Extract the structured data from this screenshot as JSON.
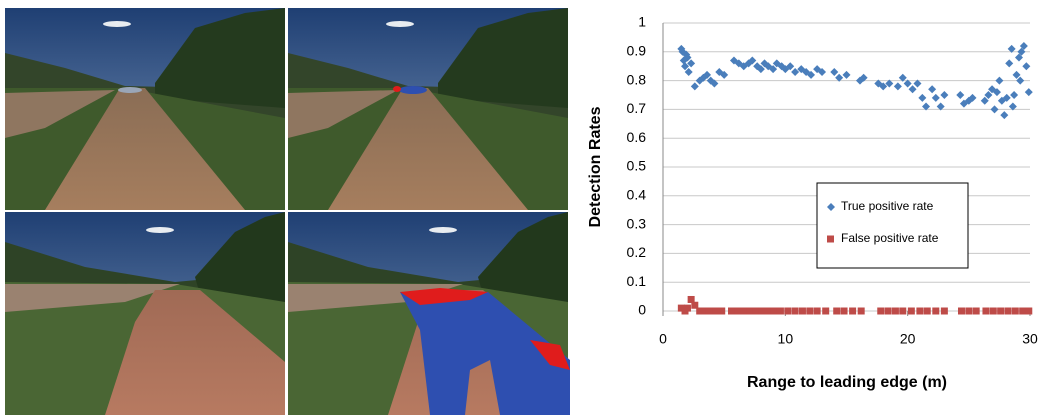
{
  "chart_data": {
    "type": "scatter",
    "xlabel": "Range to leading edge (m)",
    "ylabel": "Detection Rates",
    "xlim": [
      0,
      30
    ],
    "ylim": [
      0,
      1
    ],
    "xticks": [
      0,
      10,
      20,
      30
    ],
    "yticks": [
      0,
      0.1,
      0.2,
      0.3,
      0.4,
      0.5,
      0.6,
      0.7,
      0.8,
      0.9,
      1
    ],
    "grid": true,
    "series": [
      {
        "name": "True positive rate",
        "color": "#4a7ebb",
        "marker": "diamond",
        "x": [
          1.5,
          1.6,
          1.7,
          1.8,
          1.9,
          2.0,
          2.1,
          2.3,
          2.6,
          3.0,
          3.3,
          3.6,
          3.9,
          4.2,
          4.6,
          5.0,
          5.8,
          6.2,
          6.6,
          7.0,
          7.3,
          7.7,
          8.0,
          8.3,
          8.6,
          9.0,
          9.3,
          9.7,
          10.0,
          10.4,
          10.8,
          11.3,
          11.7,
          12.1,
          12.6,
          13.0,
          14.0,
          14.4,
          15.0,
          16.1,
          16.4,
          17.6,
          18.0,
          18.5,
          19.2,
          19.6,
          20.0,
          20.4,
          20.8,
          21.2,
          21.5,
          22.0,
          22.3,
          22.7,
          23.0,
          24.3,
          24.6,
          25.0,
          25.3,
          26.3,
          26.6,
          26.9,
          27.1,
          27.3,
          27.5,
          27.7,
          27.9,
          28.1,
          28.3,
          28.5,
          28.6,
          28.7,
          28.9,
          29.1,
          29.2,
          29.3,
          29.5,
          29.7,
          29.9
        ],
        "values": [
          0.91,
          0.9,
          0.87,
          0.85,
          0.89,
          0.88,
          0.83,
          0.86,
          0.78,
          0.8,
          0.81,
          0.82,
          0.8,
          0.79,
          0.83,
          0.82,
          0.87,
          0.86,
          0.85,
          0.86,
          0.87,
          0.85,
          0.84,
          0.86,
          0.85,
          0.84,
          0.86,
          0.85,
          0.84,
          0.85,
          0.83,
          0.84,
          0.83,
          0.82,
          0.84,
          0.83,
          0.83,
          0.81,
          0.82,
          0.8,
          0.81,
          0.79,
          0.78,
          0.79,
          0.78,
          0.81,
          0.79,
          0.77,
          0.79,
          0.74,
          0.71,
          0.77,
          0.74,
          0.71,
          0.75,
          0.75,
          0.72,
          0.73,
          0.74,
          0.73,
          0.75,
          0.77,
          0.7,
          0.76,
          0.8,
          0.73,
          0.68,
          0.74,
          0.86,
          0.91,
          0.71,
          0.75,
          0.82,
          0.88,
          0.8,
          0.9,
          0.92,
          0.85,
          0.76
        ]
      },
      {
        "name": "False positive rate",
        "color": "#be4b48",
        "marker": "square",
        "x": [
          1.5,
          1.8,
          2.0,
          2.3,
          2.6,
          3.0,
          3.4,
          3.8,
          4.3,
          4.8,
          5.6,
          6.1,
          6.6,
          7.1,
          7.6,
          8.1,
          8.6,
          9.1,
          9.6,
          10.2,
          10.8,
          11.4,
          12.0,
          12.6,
          13.3,
          14.2,
          14.8,
          15.5,
          16.2,
          17.8,
          18.4,
          19.0,
          19.6,
          20.3,
          21.0,
          21.6,
          22.3,
          23.0,
          24.4,
          25.0,
          25.6,
          26.4,
          27.0,
          27.6,
          28.2,
          28.8,
          29.4,
          29.9
        ],
        "values": [
          0.01,
          0.0,
          0.01,
          0.04,
          0.02,
          0,
          0,
          0,
          0,
          0,
          0,
          0,
          0,
          0,
          0,
          0,
          0,
          0,
          0,
          0,
          0,
          0,
          0,
          0,
          0,
          0,
          0,
          0,
          0,
          0,
          0,
          0,
          0,
          0,
          0,
          0,
          0,
          0,
          0,
          0,
          0,
          0,
          0,
          0,
          0,
          0,
          0,
          0
        ]
      }
    ]
  }
}
